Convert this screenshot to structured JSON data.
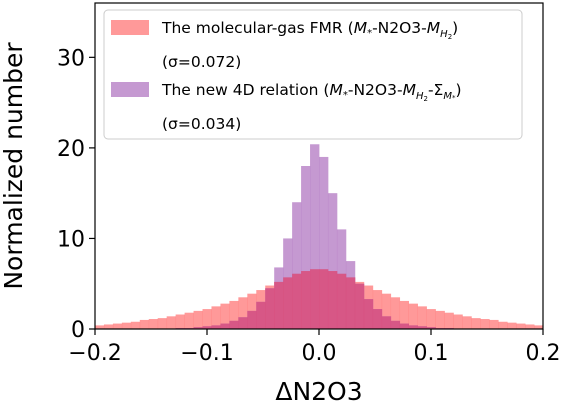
{
  "chart_data": {
    "type": "histogram",
    "xlabel": "ΔN2O3",
    "ylabel": "Normalized number",
    "xlim": [
      -0.2,
      0.2
    ],
    "ylim": [
      0,
      36
    ],
    "xticks": [
      -0.2,
      -0.1,
      0.0,
      0.1,
      0.2
    ],
    "xtick_labels": [
      "−0.2",
      "−0.1",
      "0.0",
      "0.1",
      "0.2"
    ],
    "yticks": [
      0,
      10,
      20,
      30
    ],
    "ytick_labels": [
      "0",
      "10",
      "20",
      "30"
    ],
    "grid": false,
    "legend_position": "top",
    "colors": {
      "series_1": "#ff8080",
      "series_2": "#b780c5",
      "overlap": "#d94f7c"
    },
    "series": [
      {
        "name": "The molecular-gas FMR (M*-N2O3-MH2)",
        "legend": {
          "main": "The molecular-gas FMR (",
          "m": "M",
          "star": "*",
          "mid1": "-N2O3-",
          "m2": "M",
          "h2sub": "H",
          "two": "2",
          "close": ")",
          "sigma": "(σ=0.072)"
        },
        "x": [
          -0.196,
          -0.188,
          -0.18,
          -0.172,
          -0.164,
          -0.156,
          -0.148,
          -0.14,
          -0.132,
          -0.124,
          -0.116,
          -0.108,
          -0.1,
          -0.092,
          -0.084,
          -0.076,
          -0.068,
          -0.06,
          -0.052,
          -0.044,
          -0.036,
          -0.028,
          -0.02,
          -0.012,
          -0.004,
          0.004,
          0.012,
          0.02,
          0.028,
          0.036,
          0.044,
          0.052,
          0.06,
          0.068,
          0.076,
          0.084,
          0.092,
          0.1,
          0.108,
          0.116,
          0.124,
          0.132,
          0.14,
          0.148,
          0.156,
          0.164,
          0.172,
          0.18,
          0.188,
          0.196
        ],
        "values": [
          0.4,
          0.5,
          0.6,
          0.7,
          0.8,
          1.0,
          1.1,
          1.2,
          1.4,
          1.6,
          1.8,
          2.0,
          2.2,
          2.5,
          2.8,
          3.1,
          3.5,
          3.9,
          4.3,
          4.8,
          5.2,
          5.7,
          6.1,
          6.4,
          6.6,
          6.6,
          6.4,
          6.1,
          5.7,
          5.2,
          4.8,
          4.3,
          3.9,
          3.5,
          3.1,
          2.8,
          2.5,
          2.2,
          2.0,
          1.8,
          1.6,
          1.4,
          1.2,
          1.1,
          1.0,
          0.8,
          0.7,
          0.6,
          0.5,
          0.4
        ]
      },
      {
        "name": "The new 4D relation (M*-N2O3-MH2-ΣM*)",
        "legend": {
          "main": "The new 4D relation (",
          "m": "M",
          "star": "*",
          "mid1": "-N2O3-",
          "m2": "M",
          "h2sub": "H",
          "two": "2",
          "mid2": "-Σ",
          "msub": "M",
          "close": ")",
          "sigma": "(σ=0.034)"
        },
        "x": [
          -0.196,
          -0.188,
          -0.18,
          -0.172,
          -0.164,
          -0.156,
          -0.148,
          -0.14,
          -0.132,
          -0.124,
          -0.116,
          -0.108,
          -0.1,
          -0.092,
          -0.084,
          -0.076,
          -0.068,
          -0.06,
          -0.052,
          -0.044,
          -0.036,
          -0.028,
          -0.02,
          -0.012,
          -0.004,
          0.004,
          0.012,
          0.02,
          0.028,
          0.036,
          0.044,
          0.052,
          0.06,
          0.068,
          0.076,
          0.084,
          0.092,
          0.1,
          0.108,
          0.116,
          0.124,
          0.132,
          0.14,
          0.148,
          0.156,
          0.164,
          0.172,
          0.18,
          0.188,
          0.196
        ],
        "values": [
          0.0,
          0.0,
          0.0,
          0.0,
          0.0,
          0.0,
          0.0,
          0.0,
          0.0,
          0.1,
          0.1,
          0.2,
          0.3,
          0.4,
          0.6,
          0.9,
          1.3,
          2.0,
          3.0,
          4.5,
          6.8,
          10.0,
          14.0,
          18.0,
          20.4,
          19.0,
          15.0,
          11.0,
          7.5,
          5.0,
          3.3,
          2.2,
          1.4,
          0.9,
          0.6,
          0.4,
          0.3,
          0.2,
          0.1,
          0.1,
          0.0,
          0.0,
          0.0,
          0.0,
          0.0,
          0.0,
          0.0,
          0.0,
          0.0,
          0.0
        ]
      }
    ]
  }
}
